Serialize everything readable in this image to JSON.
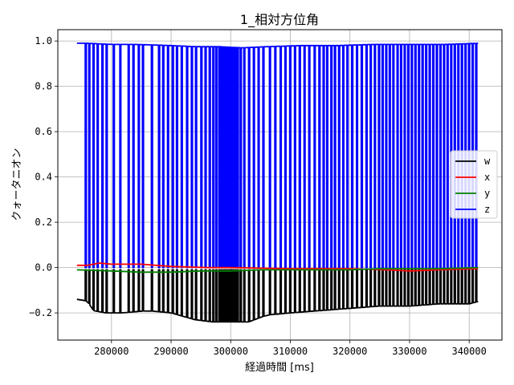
{
  "chart_data": {
    "type": "line",
    "title": "1_相対方位角",
    "xlabel": "経過時間 [ms]",
    "ylabel": "クォータニオン",
    "xlim": [
      271000,
      345500
    ],
    "ylim": [
      -0.32,
      1.05
    ],
    "xticks": [
      280000,
      290000,
      300000,
      310000,
      320000,
      330000,
      340000
    ],
    "yticks": [
      -0.2,
      0.0,
      0.2,
      0.4,
      0.6,
      0.8,
      1.0
    ],
    "ytick_labels": [
      "−0.2",
      "0.0",
      "0.2",
      "0.4",
      "0.6",
      "0.8",
      "1.0"
    ],
    "grid": true,
    "legend_position": "center-right",
    "series": [
      {
        "name": "w",
        "color": "#000000",
        "x": [
          274200,
          275000,
          276000,
          277000,
          279000,
          282000,
          286000,
          290000,
          294000,
          297000,
          300000,
          303000,
          306000,
          310000,
          315000,
          320000,
          325000,
          330000,
          335000,
          338000,
          340000,
          341500
        ],
        "values": [
          -0.14,
          -0.14,
          -0.15,
          -0.19,
          -0.2,
          -0.2,
          -0.19,
          -0.2,
          -0.23,
          -0.24,
          -0.24,
          -0.24,
          -0.21,
          -0.2,
          -0.19,
          -0.18,
          -0.17,
          -0.17,
          -0.16,
          -0.16,
          -0.16,
          -0.15
        ]
      },
      {
        "name": "x",
        "color": "#ff0000",
        "x": [
          274200,
          276000,
          278000,
          280000,
          285000,
          290000,
          296000,
          300000,
          310000,
          320000,
          326000,
          330000,
          335000,
          341500
        ],
        "values": [
          0.01,
          0.01,
          0.02,
          0.015,
          0.015,
          0.005,
          0.0,
          0.0,
          -0.005,
          -0.005,
          -0.01,
          -0.015,
          -0.01,
          -0.005
        ]
      },
      {
        "name": "y",
        "color": "#008000",
        "x": [
          274200,
          280000,
          285000,
          290000,
          295000,
          300000,
          305000,
          310000,
          315000,
          320000,
          325000,
          330000,
          335000,
          341500
        ],
        "values": [
          -0.01,
          -0.015,
          -0.02,
          -0.02,
          -0.015,
          -0.015,
          -0.01,
          -0.01,
          -0.01,
          -0.01,
          -0.005,
          -0.005,
          -0.005,
          0.0
        ]
      },
      {
        "name": "z",
        "color": "#0000ff",
        "x": [
          274200,
          275000,
          276000,
          280000,
          284000,
          290000,
          294000,
          298000,
          302000,
          306000,
          312000,
          318000,
          324000,
          330000,
          336000,
          341500
        ],
        "values": [
          0.99,
          0.99,
          0.99,
          0.985,
          0.985,
          0.98,
          0.975,
          0.975,
          0.97,
          0.975,
          0.98,
          0.98,
          0.985,
          0.985,
          0.985,
          0.99
        ]
      }
    ],
    "z_drop_times": [
      275600,
      276200,
      276900,
      277600,
      278400,
      279100,
      280300,
      281400,
      282800,
      283600,
      284500,
      285200,
      286700,
      287900,
      288600,
      289400,
      290200,
      290900,
      291700,
      292600,
      293400,
      294100,
      295000,
      295700,
      296400,
      297000,
      297500,
      298000,
      298400,
      298800,
      299200,
      299600,
      300000,
      300300,
      300700,
      301100,
      301600,
      302200,
      303000,
      303800,
      304600,
      305400,
      306500,
      307400,
      308300,
      309100,
      309900,
      310700,
      311500,
      312300,
      313100,
      314000,
      314800,
      315500,
      316100,
      316800,
      317400,
      318100,
      318800,
      319500,
      320300,
      321100,
      321900,
      322700,
      323400,
      324100,
      324800,
      325400,
      326000,
      326600,
      327200,
      327900,
      328500,
      329100,
      329700,
      330300,
      330900,
      331500,
      332100,
      332700,
      333300,
      333900,
      334500,
      335100,
      335700,
      336300,
      336900,
      337500,
      338100,
      338700,
      339300,
      339900,
      340500,
      341100
    ]
  }
}
